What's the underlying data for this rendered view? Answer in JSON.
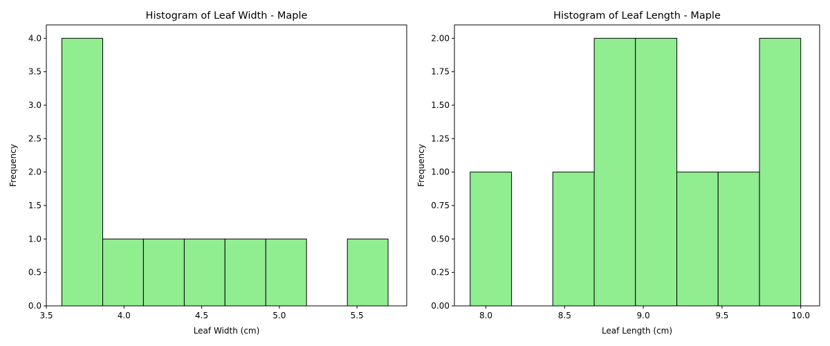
{
  "colors": {
    "bar_fill": "#90ee90",
    "bar_edge": "#000000"
  },
  "chart_data": [
    {
      "type": "bar",
      "title": "Histogram of Leaf Width - Maple",
      "xlabel": "Leaf Width (cm)",
      "ylabel": "Frequency",
      "xlim": [
        3.5,
        5.82
      ],
      "ylim": [
        0,
        4.2
      ],
      "xticks": [
        3.5,
        4.0,
        4.5,
        5.0,
        5.5
      ],
      "xtick_labels": [
        "3.5",
        "4.0",
        "4.5",
        "5.0",
        "5.5"
      ],
      "yticks": [
        0,
        0.5,
        1.0,
        1.5,
        2.0,
        2.5,
        3.0,
        3.5,
        4.0
      ],
      "ytick_labels": [
        "0.0",
        "0.5",
        "1.0",
        "1.5",
        "2.0",
        "2.5",
        "3.0",
        "3.5",
        "4.0"
      ],
      "bin_edges": [
        3.6,
        3.863,
        4.125,
        4.388,
        4.65,
        4.913,
        5.175,
        5.438,
        5.7
      ],
      "values": [
        4,
        1,
        1,
        1,
        1,
        1,
        0,
        1
      ],
      "grid": false
    },
    {
      "type": "bar",
      "title": "Histogram of Leaf Length - Maple",
      "xlabel": "Leaf Length (cm)",
      "ylabel": "Frequency",
      "xlim": [
        7.8,
        10.12
      ],
      "ylim": [
        0,
        2.1
      ],
      "xticks": [
        8.0,
        8.5,
        9.0,
        9.5,
        10.0
      ],
      "xtick_labels": [
        "8.0",
        "8.5",
        "9.0",
        "9.5",
        "10.0"
      ],
      "yticks": [
        0,
        0.25,
        0.5,
        0.75,
        1.0,
        1.25,
        1.5,
        1.75,
        2.0
      ],
      "ytick_labels": [
        "0.00",
        "0.25",
        "0.50",
        "0.75",
        "1.00",
        "1.25",
        "1.50",
        "1.75",
        "2.00"
      ],
      "bin_edges": [
        7.9,
        8.163,
        8.425,
        8.688,
        8.95,
        9.213,
        9.475,
        9.738,
        10.0
      ],
      "values": [
        1,
        0,
        1,
        2,
        2,
        1,
        1,
        2
      ],
      "grid": false
    }
  ]
}
